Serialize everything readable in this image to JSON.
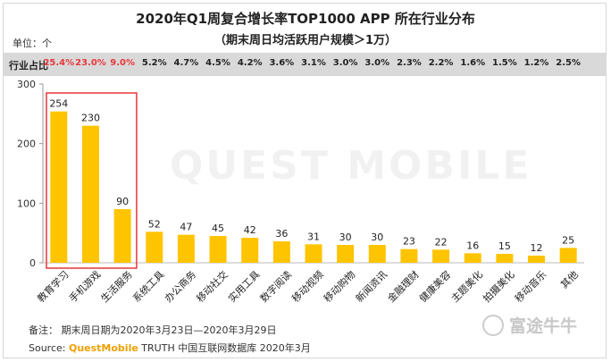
{
  "title": "2020年Q1周复合增长率TOP1000 APP 所在行业分布",
  "subtitle": "（期末周日均活跃用户规模＞1万）",
  "unit": "单位：个",
  "share_row": {
    "label": "行业占比",
    "values": [
      "25.4%",
      "23.0%",
      "9.0%",
      "5.2%",
      "4.7%",
      "4.5%",
      "4.2%",
      "3.6%",
      "3.1%",
      "3.0%",
      "3.0%",
      "2.3%",
      "2.2%",
      "1.6%",
      "1.5%",
      "1.2%",
      "2.5%"
    ],
    "highlight_count": 3,
    "highlight_color": "#e8363b",
    "normal_color": "#222222"
  },
  "chart_data": {
    "type": "bar",
    "title": "2020年Q1周复合增长率TOP1000 APP 所在行业分布",
    "xlabel": "",
    "ylabel": "单位：个",
    "categories": [
      "教育学习",
      "手机游戏",
      "生活服务",
      "系统工具",
      "办公商务",
      "移动社交",
      "实用工具",
      "数字阅读",
      "移动视频",
      "移动购物",
      "新闻资讯",
      "金融理财",
      "健康美容",
      "主题美化",
      "拍摄美化",
      "移动音乐",
      "其他"
    ],
    "values": [
      254,
      230,
      90,
      52,
      47,
      45,
      42,
      36,
      31,
      30,
      30,
      23,
      22,
      16,
      15,
      12,
      25
    ],
    "ylim": [
      0,
      300
    ],
    "yticks": [
      0,
      100,
      200,
      300
    ],
    "bar_color": "#ffc400",
    "highlighted_group": [
      "教育学习",
      "手机游戏",
      "生活服务"
    ],
    "highlight_box_color": "#e8363b"
  },
  "notes": {
    "remark": "备注：  期末周日期为2020年3月23日—2020年3月29日",
    "source_prefix": "Source:  ",
    "source_brand": "QuestMobile",
    "source_rest": " TRUTH 中国互联网数据库 2020年3月"
  },
  "watermark": "QUEST MOBILE",
  "logo_text": "富途牛牛"
}
